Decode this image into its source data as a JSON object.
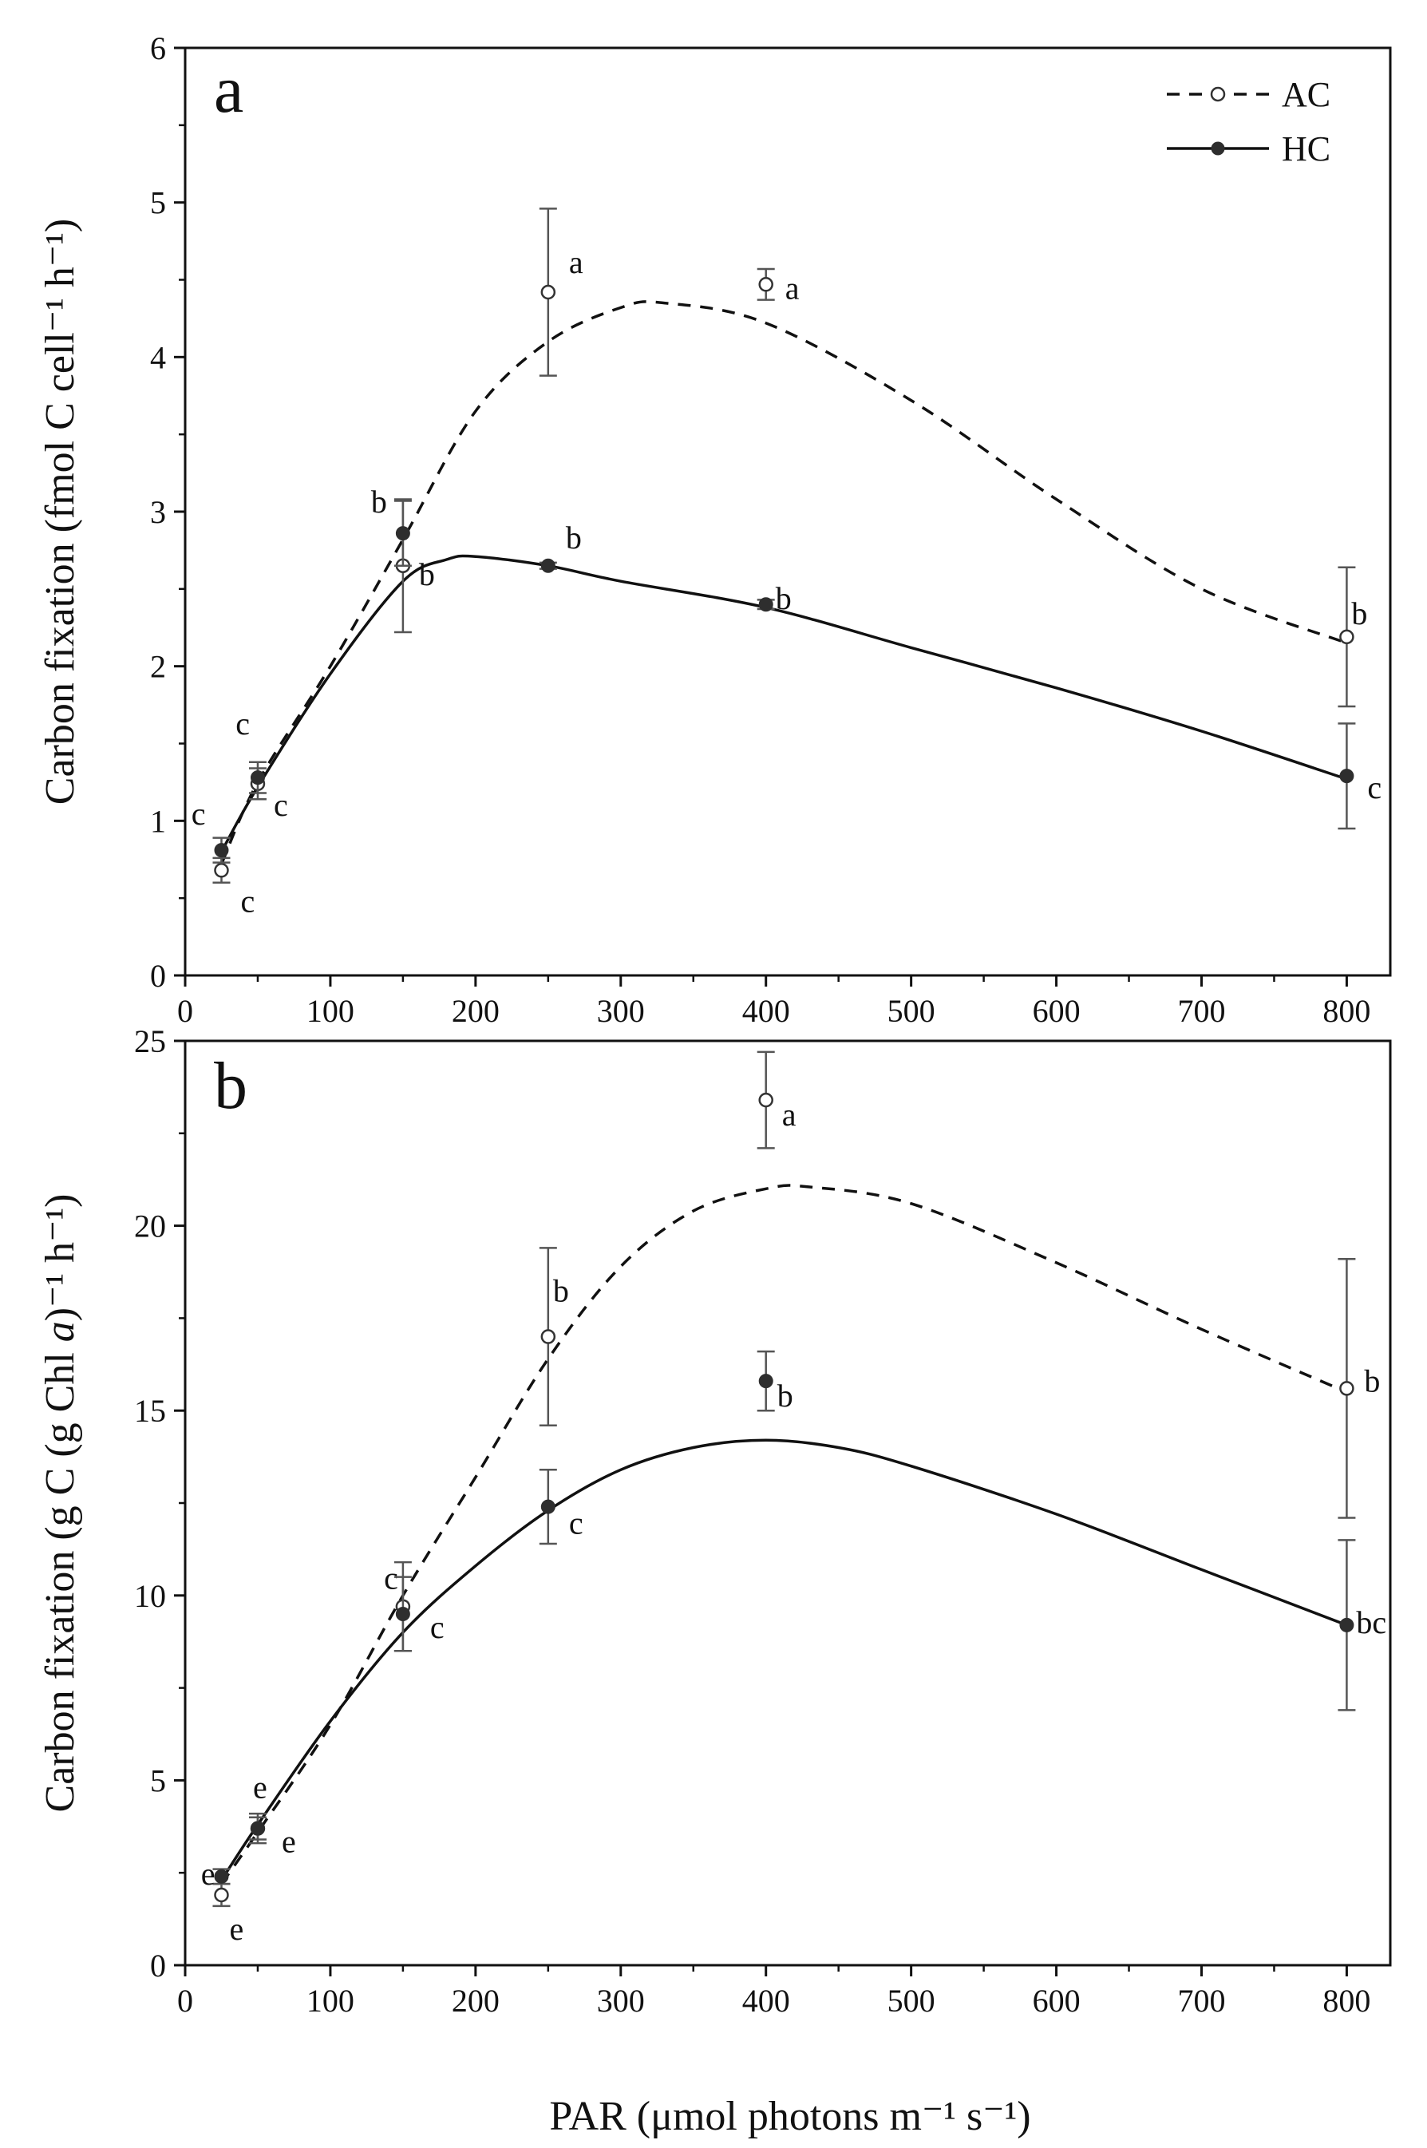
{
  "figure": {
    "x_axis_title": "PAR (μmol photons m⁻¹ s⁻¹)",
    "legend": [
      {
        "series": "AC",
        "label": "AC",
        "style": "dashed",
        "marker": "open-circle"
      },
      {
        "series": "HC",
        "label": "HC",
        "style": "solid",
        "marker": "filled-circle"
      }
    ],
    "colors": {
      "ac_line": "#111111",
      "hc_line": "#111111",
      "hc_point": "#2e2e2e",
      "error_bar": "#555555"
    }
  },
  "chart_data": [
    {
      "type": "line",
      "panel_label": "a",
      "ylabel": "Carbon fixation (fmol C cell⁻¹ h⁻¹)",
      "ylim": [
        0,
        6
      ],
      "yticks": [
        0,
        1,
        2,
        3,
        4,
        5,
        6
      ],
      "xlim_display": [
        0,
        830
      ],
      "x_break": "values above 700 plotted at 800 position",
      "xticks": [
        {
          "value": 0,
          "label": "0"
        },
        {
          "value": 100,
          "label": "100"
        },
        {
          "value": 200,
          "label": "200"
        },
        {
          "value": 300,
          "label": "300"
        },
        {
          "value": 400,
          "label": "400"
        },
        {
          "value": 500,
          "label": "500"
        },
        {
          "value": 600,
          "label": "600"
        },
        {
          "value": 700,
          "label": "700"
        },
        {
          "value": 800,
          "label": "800"
        }
      ],
      "series": [
        {
          "name": "AC",
          "points": [
            {
              "x": 25,
              "y": 0.68,
              "err": 0.08,
              "sig": "c"
            },
            {
              "x": 50,
              "y": 1.24,
              "err": 0.1,
              "sig": "c"
            },
            {
              "x": 150,
              "y": 2.65,
              "err": 0.43,
              "sig": "b"
            },
            {
              "x": 250,
              "y": 4.42,
              "err": 0.54,
              "sig": "a"
            },
            {
              "x": 400,
              "y": 4.47,
              "err": 0.1,
              "sig": "a"
            },
            {
              "x": 800,
              "y": 2.19,
              "err": 0.45,
              "sig": "b"
            }
          ],
          "fit": [
            [
              25,
              0.72
            ],
            [
              50,
              1.25
            ],
            [
              100,
              2.0
            ],
            [
              150,
              2.82
            ],
            [
              200,
              3.65
            ],
            [
              250,
              4.1
            ],
            [
              300,
              4.32
            ],
            [
              330,
              4.35
            ],
            [
              400,
              4.22
            ],
            [
              500,
              3.72
            ],
            [
              600,
              3.08
            ],
            [
              700,
              2.5
            ],
            [
              800,
              2.15
            ]
          ]
        },
        {
          "name": "HC",
          "points": [
            {
              "x": 25,
              "y": 0.81,
              "err": 0.08,
              "sig": "c"
            },
            {
              "x": 50,
              "y": 1.28,
              "err": 0.1,
              "sig": "c"
            },
            {
              "x": 150,
              "y": 2.86,
              "err": 0.21,
              "sig": "b"
            },
            {
              "x": 250,
              "y": 2.65,
              "err": 0.02,
              "sig": "b"
            },
            {
              "x": 400,
              "y": 2.4,
              "err": 0.03,
              "sig": "b"
            },
            {
              "x": 800,
              "y": 1.29,
              "err": 0.34,
              "sig": "c"
            }
          ],
          "fit": [
            [
              25,
              0.8
            ],
            [
              50,
              1.22
            ],
            [
              100,
              1.95
            ],
            [
              150,
              2.55
            ],
            [
              180,
              2.69
            ],
            [
              200,
              2.71
            ],
            [
              250,
              2.65
            ],
            [
              300,
              2.55
            ],
            [
              400,
              2.38
            ],
            [
              500,
              2.12
            ],
            [
              600,
              1.86
            ],
            [
              700,
              1.58
            ],
            [
              800,
              1.27
            ]
          ]
        }
      ]
    },
    {
      "type": "line",
      "panel_label": "b",
      "ylabel": "Carbon fixation (g C (g Chl a)⁻¹ h⁻¹)",
      "ylabel_parts": {
        "pre": "Carbon fixation (g C (g Chl ",
        "italic": "a",
        "post": ")⁻¹ h⁻¹)"
      },
      "ylim": [
        0,
        25
      ],
      "yticks": [
        0,
        5,
        10,
        15,
        20,
        25
      ],
      "xlim_display": [
        0,
        830
      ],
      "x_break": "values above 700 plotted at 800 position",
      "xticks": [
        {
          "value": 0,
          "label": "0"
        },
        {
          "value": 100,
          "label": "100"
        },
        {
          "value": 200,
          "label": "200"
        },
        {
          "value": 300,
          "label": "300"
        },
        {
          "value": 400,
          "label": "400"
        },
        {
          "value": 500,
          "label": "500"
        },
        {
          "value": 600,
          "label": "600"
        },
        {
          "value": 700,
          "label": "700"
        },
        {
          "value": 800,
          "label": "800"
        }
      ],
      "series": [
        {
          "name": "AC",
          "points": [
            {
              "x": 25,
              "y": 1.9,
              "err": 0.3,
              "sig": "e"
            },
            {
              "x": 50,
              "y": 3.7,
              "err": 0.4,
              "sig": "e"
            },
            {
              "x": 150,
              "y": 9.7,
              "err": 1.2,
              "sig": "c"
            },
            {
              "x": 250,
              "y": 17.0,
              "err": 2.4,
              "sig": "b"
            },
            {
              "x": 400,
              "y": 23.4,
              "err": 1.3,
              "sig": "a"
            },
            {
              "x": 800,
              "y": 15.6,
              "err": 3.5,
              "sig": "b"
            }
          ],
          "fit": [
            [
              25,
              2.2
            ],
            [
              50,
              3.6
            ],
            [
              100,
              6.5
            ],
            [
              150,
              10.0
            ],
            [
              200,
              13.2
            ],
            [
              250,
              16.4
            ],
            [
              300,
              18.9
            ],
            [
              350,
              20.4
            ],
            [
              400,
              21.0
            ],
            [
              430,
              21.05
            ],
            [
              500,
              20.6
            ],
            [
              600,
              19.0
            ],
            [
              700,
              17.2
            ],
            [
              800,
              15.5
            ]
          ]
        },
        {
          "name": "HC",
          "points": [
            {
              "x": 25,
              "y": 2.4,
              "err": 0.2,
              "sig": "e"
            },
            {
              "x": 50,
              "y": 3.7,
              "err": 0.3,
              "sig": "e"
            },
            {
              "x": 150,
              "y": 9.5,
              "err": 1.0,
              "sig": "c"
            },
            {
              "x": 250,
              "y": 12.4,
              "err": 1.0,
              "sig": "c"
            },
            {
              "x": 400,
              "y": 15.8,
              "err": 0.8,
              "sig": "b"
            },
            {
              "x": 800,
              "y": 9.2,
              "err": 2.3,
              "sig": "bc"
            }
          ],
          "fit": [
            [
              25,
              2.3
            ],
            [
              50,
              3.8
            ],
            [
              100,
              6.6
            ],
            [
              150,
              9.0
            ],
            [
              200,
              10.8
            ],
            [
              250,
              12.3
            ],
            [
              300,
              13.4
            ],
            [
              350,
              14.0
            ],
            [
              400,
              14.2
            ],
            [
              450,
              14.0
            ],
            [
              500,
              13.5
            ],
            [
              600,
              12.2
            ],
            [
              700,
              10.7
            ],
            [
              800,
              9.2
            ]
          ]
        }
      ]
    }
  ]
}
